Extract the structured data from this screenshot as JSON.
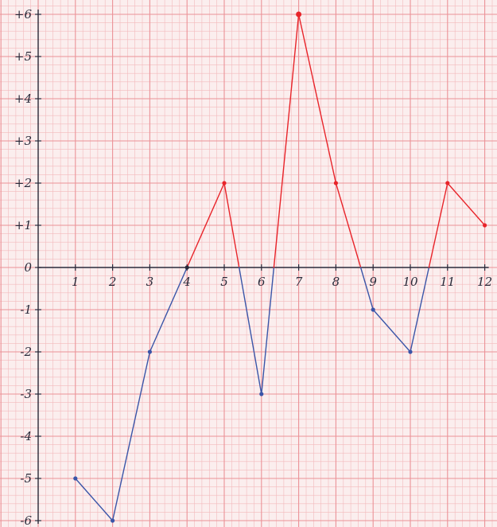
{
  "chart_data": {
    "type": "line",
    "x": [
      1,
      2,
      3,
      4,
      5,
      6,
      7,
      8,
      9,
      10,
      11,
      12
    ],
    "values": [
      -5,
      -6,
      -2,
      0,
      2,
      -3,
      6,
      2,
      -1,
      -2,
      2,
      1
    ],
    "xlim": [
      0,
      12
    ],
    "ylim": [
      -6,
      6
    ],
    "x_tick_labels": [
      "1",
      "2",
      "3",
      "4",
      "5",
      "6",
      "7",
      "8",
      "9",
      "10",
      "11",
      "12"
    ],
    "y_tick_labels": [
      "+6",
      "+5",
      "+4",
      "+3",
      "+2",
      "+1",
      "0",
      "-1",
      "-2",
      "-3",
      "-4",
      "-5",
      "-6"
    ],
    "y_tick_values": [
      6,
      5,
      4,
      3,
      2,
      1,
      0,
      -1,
      -2,
      -3,
      -4,
      -5,
      -6
    ],
    "title": "",
    "xlabel": "",
    "ylabel": "",
    "grid": true,
    "background": "graph-paper",
    "colors": {
      "positive": "#e8242a",
      "negative": "#3a55a8",
      "paper": "#fbeeee",
      "grid_fine": "#f3b9bc",
      "grid_major": "#eb9297",
      "axis": "#2a2a3a"
    },
    "style_notes": "segments above zero drawn red, segments below zero drawn blue"
  }
}
